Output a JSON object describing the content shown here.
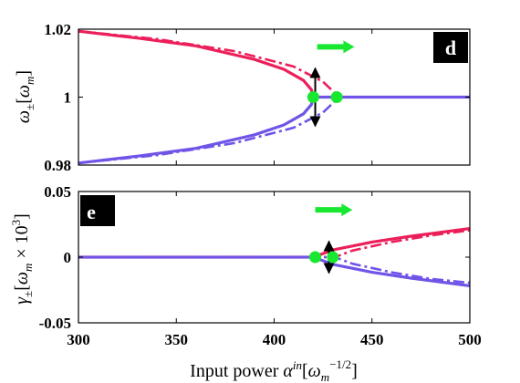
{
  "colors": {
    "red": "#ec1f5a",
    "purple": "#7054e8",
    "green": "#18e830",
    "tag_bg": "#000000",
    "tag_text": "#ffffff"
  },
  "chart_data": [
    {
      "type": "line",
      "panel_label": "d",
      "ylabel": "ω±[ω_m]",
      "xlabel": "",
      "xlim": [
        300,
        500
      ],
      "ylim": [
        0.98,
        1.02
      ],
      "x_ticks": [
        300,
        350,
        400,
        450,
        500
      ],
      "y_ticks": [
        0.98,
        1,
        1.02
      ],
      "y_tick_labels": [
        "0.98",
        "1",
        "1.02"
      ],
      "series": [
        {
          "color": "red",
          "style": "solid",
          "x": [
            300,
            330,
            360,
            390,
            405,
            415,
            419,
            420
          ],
          "y": [
            1.0194,
            1.0174,
            1.0151,
            1.0111,
            1.0082,
            1.0049,
            1.0022,
            1.0
          ]
        },
        {
          "color": "purple",
          "style": "solid",
          "x": [
            300,
            330,
            360,
            390,
            405,
            415,
            419,
            420
          ],
          "y": [
            0.9806,
            0.9826,
            0.9849,
            0.9889,
            0.9918,
            0.9951,
            0.9978,
            1.0
          ]
        },
        {
          "color": "purple",
          "style": "solid",
          "x": [
            420,
            500
          ],
          "y": [
            1.0,
            1.0
          ]
        },
        {
          "color": "red",
          "style": "dashdot",
          "x": [
            300,
            340,
            380,
            410,
            425,
            431,
            432
          ],
          "y": [
            1.0194,
            1.0171,
            1.0135,
            1.009,
            1.0045,
            1.0012,
            1.0
          ]
        },
        {
          "color": "purple",
          "style": "dashdot",
          "x": [
            300,
            340,
            380,
            410,
            425,
            431,
            432
          ],
          "y": [
            0.9806,
            0.9829,
            0.9865,
            0.991,
            0.9955,
            0.9988,
            1.0
          ]
        }
      ],
      "markers": [
        {
          "x": 420,
          "y": 1.0,
          "color": "green"
        },
        {
          "x": 432,
          "y": 1.0,
          "color": "green"
        }
      ],
      "double_arrow": {
        "x": 421,
        "y_from": 1.0085,
        "y_to": 0.9915
      },
      "green_arrow": {
        "x_from": 422,
        "x_to": 441,
        "y": 1.0148
      }
    },
    {
      "type": "line",
      "panel_label": "e",
      "ylabel": "γ±[ω_m × 10^3]",
      "xlabel": "Input power α^in[ω_m^-1/2]",
      "xlim": [
        300,
        500
      ],
      "ylim": [
        -0.05,
        0.05
      ],
      "x_ticks": [
        300,
        350,
        400,
        450,
        500
      ],
      "x_tick_labels": [
        "300",
        "350",
        "400",
        "450",
        "500"
      ],
      "y_ticks": [
        -0.05,
        0,
        0.05
      ],
      "y_tick_labels": [
        "-0.05",
        "0",
        "0.05"
      ],
      "series": [
        {
          "color": "purple",
          "style": "solid",
          "x": [
            300,
            420
          ],
          "y": [
            0,
            0
          ]
        },
        {
          "color": "red",
          "style": "solid",
          "x": [
            420,
            430,
            450,
            470,
            500
          ],
          "y": [
            0,
            0.0055,
            0.0115,
            0.016,
            0.0218
          ]
        },
        {
          "color": "purple",
          "style": "solid",
          "x": [
            420,
            430,
            450,
            470,
            500
          ],
          "y": [
            0,
            -0.0055,
            -0.0115,
            -0.016,
            -0.0218
          ]
        },
        {
          "color": "red",
          "style": "dashdot",
          "x": [
            300,
            431,
            440,
            460,
            480,
            500
          ],
          "y": [
            0,
            0,
            0.005,
            0.0115,
            0.0165,
            0.0205
          ]
        },
        {
          "color": "purple",
          "style": "dashdot",
          "x": [
            300,
            431,
            440,
            460,
            480,
            500
          ],
          "y": [
            0,
            0,
            -0.005,
            -0.0115,
            -0.0165,
            -0.0195
          ]
        }
      ],
      "markers": [
        {
          "x": 421,
          "y": 0,
          "color": "green"
        },
        {
          "x": 430,
          "y": 0,
          "color": "green"
        }
      ],
      "double_arrow": {
        "x": 428,
        "y_from": 0.012,
        "y_to": -0.012
      },
      "green_arrow": {
        "x_from": 421,
        "x_to": 440,
        "y": 0.036
      }
    }
  ]
}
